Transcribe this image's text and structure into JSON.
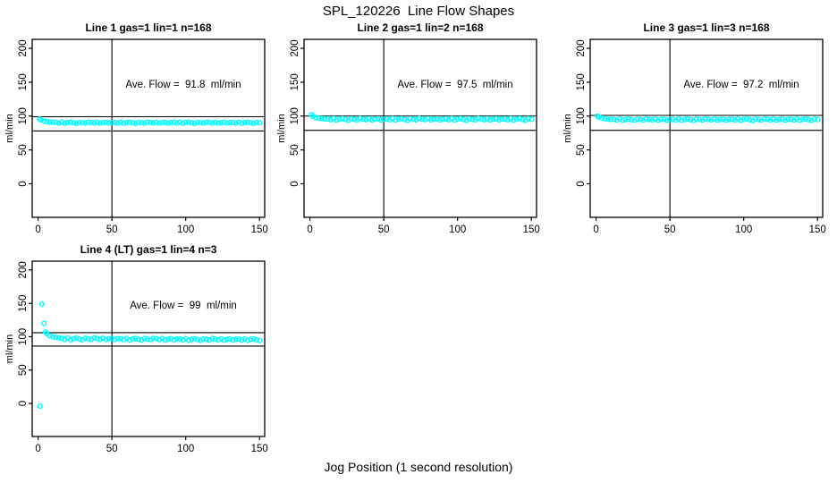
{
  "figure": {
    "title": "SPL_120226  Line Flow Shapes",
    "xlabel": "Jog Position (1 second resolution)",
    "background": "#ffffff",
    "axis_color": "#000000",
    "point_color": "#00ffff"
  },
  "chart_data": {
    "type": "scatter",
    "title": "SPL_120226  Line Flow Shapes",
    "xlabel": "Jog Position (1 second resolution)",
    "ylabel": "ml/min",
    "grid": false,
    "legend": false,
    "xlim": [
      -4,
      153.5
    ],
    "ylim": [
      -49.5,
      213.2
    ],
    "xticks": [
      0,
      50,
      100,
      150
    ],
    "yticks": [
      0,
      50,
      100,
      150,
      200
    ],
    "marker": "open-circle",
    "marker_color": "#00ffff",
    "panels": [
      {
        "title": "Line 1 gas=1 lin=1 n=168",
        "annotation": "Ave. Flow =  91.8  ml/min",
        "avg_flow": 91.8,
        "n": 168,
        "ylabel": "ml/min",
        "vline_x": 50,
        "hlines": [
          99,
          78
        ],
        "head_points": [
          [
            1,
            95.5
          ]
        ],
        "x_start": 2,
        "x_step": 2,
        "y": [
          94.2,
          92.6,
          91.6,
          91.0,
          90.8,
          90.6,
          89.7,
          90.9,
          89.4,
          90.4,
          90.8,
          90.0,
          89.3,
          90.7,
          90.2,
          89.7,
          91.0,
          90.5,
          89.8,
          90.7,
          89.5,
          90.3,
          90.7,
          89.6,
          90.4,
          90.6,
          89.7,
          90.9,
          89.4,
          90.4,
          90.8,
          90.0,
          89.3,
          90.7,
          90.2,
          89.7,
          91.0,
          90.5,
          89.8,
          90.7,
          89.5,
          90.3,
          90.7,
          89.6,
          90.4,
          90.6,
          89.7,
          90.9,
          89.4,
          90.4,
          90.8,
          90.0,
          89.3,
          90.7,
          90.2,
          89.7,
          91.0,
          90.5,
          89.8,
          90.7,
          89.5,
          90.3,
          90.7,
          89.6,
          90.4,
          90.6,
          89.7,
          90.9,
          89.4,
          90.4,
          90.8,
          90.0,
          89.3,
          90.7,
          90.2
        ]
      },
      {
        "title": "Line 2 gas=1 lin=2 n=168",
        "annotation": "Ave. Flow =  97.5  ml/min",
        "avg_flow": 97.5,
        "n": 168,
        "ylabel": "ml/min",
        "vline_x": 50,
        "hlines": [
          100,
          79
        ],
        "head_points": [
          [
            1,
            102
          ]
        ],
        "x_start": 2,
        "x_step": 2,
        "y": [
          99.5,
          97.8,
          96.8,
          96.2,
          95.8,
          95.7,
          94.5,
          96.2,
          94.0,
          95.5,
          96.1,
          94.9,
          93.9,
          96.0,
          95.2,
          94.4,
          96.4,
          95.6,
          94.7,
          96.0,
          94.2,
          95.3,
          95.9,
          94.3,
          95.5,
          95.7,
          94.5,
          96.2,
          94.0,
          95.5,
          96.1,
          94.9,
          93.9,
          96.0,
          95.2,
          94.4,
          96.4,
          95.6,
          94.7,
          96.0,
          94.2,
          95.3,
          95.9,
          94.3,
          95.5,
          95.7,
          94.5,
          96.2,
          94.0,
          95.5,
          96.1,
          94.9,
          93.9,
          96.0,
          95.2,
          94.4,
          96.4,
          95.6,
          94.7,
          96.0,
          94.2,
          95.3,
          95.9,
          94.3,
          95.5,
          95.7,
          94.5,
          96.2,
          94.0,
          95.5,
          96.1,
          94.9,
          93.9,
          96.0,
          95.2
        ]
      },
      {
        "title": "Line 3 gas=1 lin=3 n=168",
        "annotation": "Ave. Flow =  97.2  ml/min",
        "avg_flow": 97.2,
        "n": 168,
        "ylabel": "ml/min",
        "vline_x": 50,
        "hlines": [
          101,
          79
        ],
        "head_points": [
          [
            1,
            100
          ]
        ],
        "x_start": 2,
        "x_step": 2,
        "y": [
          98.4,
          96.9,
          95.9,
          95.4,
          95.0,
          95.3,
          94.1,
          95.8,
          93.6,
          95.1,
          95.7,
          94.5,
          93.5,
          95.6,
          94.8,
          94.0,
          96.0,
          95.2,
          94.3,
          95.6,
          93.8,
          94.9,
          95.5,
          93.9,
          95.1,
          95.3,
          94.1,
          95.8,
          93.6,
          95.1,
          95.7,
          94.5,
          93.5,
          95.6,
          94.8,
          94.0,
          96.0,
          95.2,
          94.3,
          95.6,
          93.8,
          94.9,
          95.5,
          93.9,
          95.1,
          95.3,
          94.1,
          95.8,
          93.6,
          95.1,
          95.7,
          94.5,
          93.5,
          95.6,
          94.8,
          94.0,
          96.0,
          95.2,
          94.3,
          95.6,
          93.8,
          94.9,
          95.5,
          93.9,
          95.1,
          95.3,
          94.1,
          95.8,
          93.6,
          95.1,
          95.7,
          94.5,
          93.5,
          95.6,
          94.8
        ]
      },
      {
        "title": "Line 4 (LT) gas=1 lin=4 n=3",
        "annotation": "Ave. Flow =  99  ml/min",
        "avg_flow": 99,
        "n": 3,
        "ylabel": "ml/min",
        "vline_x": 50,
        "hlines": [
          106,
          86
        ],
        "head_points": [
          [
            1.2,
            -4
          ],
          [
            2.5,
            149
          ],
          [
            4,
            120
          ],
          [
            5,
            107
          ]
        ],
        "x_start": 6,
        "x_step": 2,
        "y": [
          104.5,
          101.5,
          100.0,
          99.0,
          98.3,
          97.4,
          96.1,
          97.9,
          95.5,
          97.1,
          97.8,
          96.5,
          95.4,
          97.6,
          96.8,
          96.0,
          98.1,
          97.2,
          96.2,
          97.6,
          95.7,
          96.9,
          97.5,
          95.8,
          97.1,
          97.0,
          95.7,
          97.5,
          95.1,
          96.7,
          97.4,
          96.1,
          95.0,
          97.2,
          96.4,
          95.6,
          97.7,
          96.8,
          95.8,
          97.2,
          95.3,
          96.5,
          97.1,
          95.4,
          96.7,
          96.6,
          95.3,
          97.1,
          94.7,
          96.3,
          97.0,
          95.7,
          94.6,
          96.8,
          96.0,
          95.2,
          97.3,
          96.4,
          95.4,
          96.8,
          94.9,
          96.1,
          96.7,
          95.0,
          96.3,
          96.3,
          95.0,
          96.8,
          94.4,
          96.0,
          96.7,
          95.4,
          94.3
        ]
      }
    ]
  }
}
